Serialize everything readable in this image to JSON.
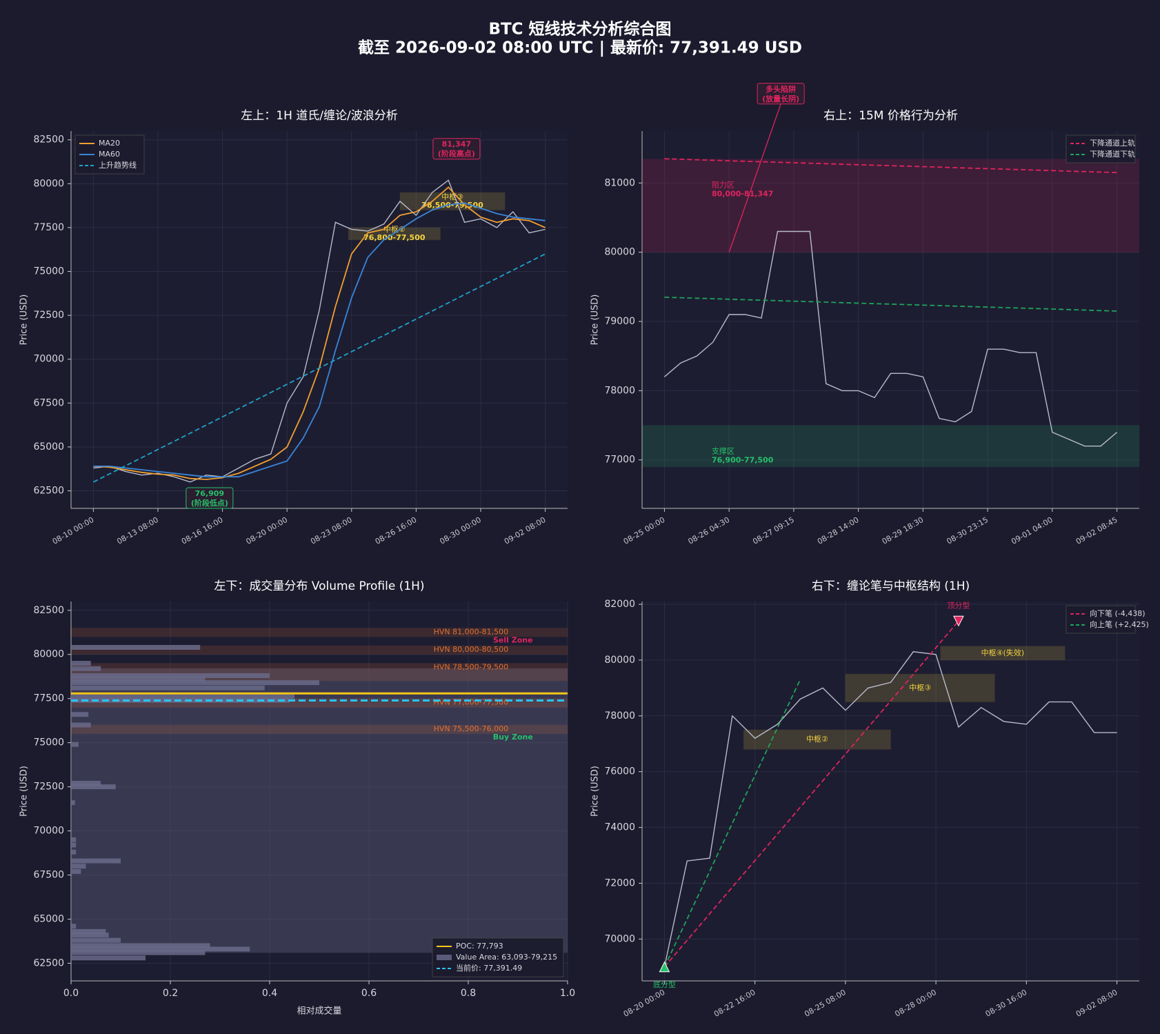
{
  "title": "BTC 短线技术分析综合图",
  "subtitle": "截至 2026-09-02 08:00 UTC | 最新价: 77,391.49 USD",
  "chart_data": [
    {
      "type": "line",
      "title": "左上：1H 道氏/缠论/波浪分析",
      "ylabel": "Price (USD)",
      "grid": true,
      "legend": "upper left",
      "categories": [
        "08-10 00:00",
        null,
        null,
        null,
        "08-13 08:00",
        null,
        null,
        null,
        "08-16 16:00",
        null,
        null,
        null,
        "08-20 00:00",
        null,
        null,
        null,
        "08-23 08:00",
        null,
        null,
        null,
        "08-26 16:00",
        null,
        null,
        null,
        "08-30 00:00",
        null,
        null,
        null,
        "09-02 08:00"
      ],
      "series": [
        {
          "color": "#b8bccb",
          "values": [
            63800,
            63900,
            63600,
            63400,
            63500,
            63300,
            63000,
            63400,
            63300,
            63800,
            64300,
            64600,
            67500,
            69000,
            72800,
            77800,
            77400,
            77300,
            77700,
            79000,
            78200,
            79500,
            80200,
            77800,
            78000,
            77500,
            78400,
            77200,
            77400
          ]
        },
        {
          "name": "MA20",
          "color": "#f0a030",
          "values": [
            63900,
            63850,
            63700,
            63550,
            63450,
            63400,
            63200,
            63150,
            63250,
            63500,
            63900,
            64300,
            65000,
            67000,
            69500,
            73000,
            76000,
            77200,
            77400,
            78200,
            78400,
            79000,
            79800,
            78800,
            78100,
            77800,
            78000,
            77900,
            77500
          ]
        },
        {
          "name": "MA60",
          "color": "#3a86d8",
          "values": [
            63900,
            63900,
            63800,
            63700,
            63600,
            63500,
            63400,
            63300,
            63300,
            63300,
            63600,
            63900,
            64200,
            65500,
            67300,
            70500,
            73500,
            75800,
            76800,
            77400,
            78000,
            78500,
            78800,
            78900,
            78600,
            78300,
            78100,
            78000,
            77900
          ]
        },
        {
          "name": "上升趋势线",
          "color": "#1fa3c9",
          "dash": true,
          "values": [
            63000,
            63464,
            63929,
            64393,
            64857,
            65321,
            65786,
            66250,
            66714,
            67179,
            67643,
            68107,
            68571,
            69036,
            69500,
            69964,
            70429,
            70893,
            71357,
            71821,
            72286,
            72750,
            73214,
            73679,
            74143,
            74607,
            75071,
            75536,
            76000
          ]
        }
      ],
      "ylim": [
        61500,
        83000
      ],
      "yticks": [
        62500,
        65000,
        67500,
        70000,
        72500,
        75000,
        77500,
        80000,
        82500
      ],
      "zones": [
        {
          "lines": [
            "中枢③",
            "78,500-79,500"
          ],
          "ymin": 78500,
          "ymax": 79500,
          "from": 19,
          "to": 25.5,
          "color": "#f5d442"
        },
        {
          "lines": [
            "中枢②",
            "76,800-77,500"
          ],
          "ymin": 76800,
          "ymax": 77500,
          "from": 15.8,
          "to": 21.5,
          "color": "#f5d442"
        }
      ],
      "annotations": [
        {
          "lines": [
            "81,347",
            "(阶段高点)"
          ],
          "index": 22.5,
          "value": 81950,
          "color": "#e0245e"
        },
        {
          "lines": [
            "76,909",
            "(阶段低点)"
          ],
          "index": 7.2,
          "value": 62050,
          "color": "#26c06a"
        }
      ]
    },
    {
      "type": "line",
      "title": "右上：15M 价格行为分析",
      "ylabel": "Price (USD)",
      "grid": true,
      "legend": "upper right",
      "categories": [
        "08-25 00:00",
        null,
        null,
        null,
        "08-26 04:30",
        null,
        null,
        null,
        "08-27 09:15",
        null,
        null,
        null,
        "08-28 14:00",
        null,
        null,
        null,
        "08-29 18:30",
        null,
        null,
        null,
        "08-30 23:15",
        null,
        null,
        null,
        "09-01 04:00",
        null,
        null,
        null,
        "09-02 08:45"
      ],
      "series": [
        {
          "color": "#b8bccb",
          "values": [
            78200,
            78400,
            78500,
            78700,
            79100,
            79100,
            79050,
            80300,
            80300,
            80300,
            78100,
            78000,
            78000,
            77900,
            78250,
            78250,
            78200,
            77600,
            77550,
            77700,
            78600,
            78600,
            78550,
            78550,
            77400,
            77300,
            77200,
            77200,
            77400
          ]
        },
        {
          "name": "下降通道上轨",
          "color": "#e0245e",
          "dash": true,
          "values": [
            81350,
            81343,
            81336,
            81329,
            81321,
            81314,
            81307,
            81300,
            81293,
            81286,
            81279,
            81271,
            81264,
            81257,
            81250,
            81243,
            81236,
            81229,
            81221,
            81214,
            81207,
            81200,
            81193,
            81186,
            81179,
            81171,
            81164,
            81157,
            81150
          ]
        },
        {
          "name": "下降通道下轨",
          "color": "#1fa35a",
          "dash": true,
          "values": [
            79350,
            79343,
            79336,
            79329,
            79321,
            79314,
            79307,
            79300,
            79293,
            79286,
            79279,
            79271,
            79264,
            79257,
            79250,
            79243,
            79236,
            79229,
            79221,
            79214,
            79207,
            79200,
            79193,
            79186,
            79179,
            79171,
            79164,
            79157,
            79150
          ]
        }
      ],
      "ylim": [
        76300,
        81750
      ],
      "yticks": [
        77000,
        78000,
        79000,
        80000,
        81000
      ],
      "zones": [
        {
          "lines": [
            "阻力区",
            "80,000-81,347"
          ],
          "ymin": 80000,
          "ymax": 81347,
          "color": "#e0245e"
        },
        {
          "lines": [
            "支撑区",
            "76,900-77,500"
          ],
          "ymin": 76900,
          "ymax": 77500,
          "color": "#26c06a"
        }
      ],
      "annotations": [
        {
          "lines": [
            "多头陷阱",
            "(放量长阴)"
          ],
          "index": 7.2,
          "value": 82280,
          "color": "#e0245e",
          "arrow": [
            4,
            80000
          ]
        }
      ]
    },
    {
      "type": "bar",
      "orientation": "horizontal",
      "title": "左下：成交量分布 Volume Profile (1H)",
      "ylabel": "Price (USD)",
      "xlabel": "相对成交量",
      "grid": true,
      "legend": "lower right",
      "color": "#6a6a8a",
      "y": [
        62800,
        63100,
        63300,
        63500,
        63800,
        64100,
        64300,
        64600,
        67700,
        68000,
        68300,
        68800,
        69200,
        69500,
        71600,
        72500,
        72700,
        74900,
        76000,
        76600,
        77400,
        77600,
        78100,
        78400,
        78600,
        78800,
        79200,
        79500,
        80400
      ],
      "values": [
        0.15,
        0.27,
        0.36,
        0.28,
        0.1,
        0.076,
        0.07,
        0.01,
        0.02,
        0.03,
        0.1,
        0.01,
        0.01,
        0.01,
        0.008,
        0.09,
        0.06,
        0.015,
        0.04,
        0.035,
        0.44,
        0.45,
        0.39,
        0.5,
        0.27,
        0.4,
        0.06,
        0.04,
        0.26
      ],
      "xlim": [
        0,
        1
      ],
      "xticks": [
        {
          "value": 0,
          "label": "0.0"
        },
        0.2,
        0.4,
        0.6,
        0.8,
        {
          "value": 1,
          "label": "1.0"
        }
      ],
      "ylim": [
        61500,
        83000
      ],
      "yticks": [
        62500,
        65000,
        67500,
        70000,
        72500,
        75000,
        77500,
        80000,
        82500
      ],
      "band": {
        "label": "Value Area: 63,093-79,215",
        "ymin": 63093,
        "ymax": 79215,
        "color": "#5a5a7a"
      },
      "lines": [
        {
          "label": "POC: 77,793",
          "value": 77793,
          "color": "#f5c518"
        },
        {
          "label": "当前价: 77,391.49",
          "value": 77391.49,
          "color": "#29c5f6",
          "dash": true
        }
      ],
      "zones": [
        {
          "lines": [
            "HVN 81,000-81,500"
          ],
          "ymin": 81000,
          "ymax": 81500,
          "color": "#e07030"
        },
        {
          "lines": [
            "HVN 80,000-80,500"
          ],
          "ymin": 80000,
          "ymax": 80500,
          "color": "#e07030"
        },
        {
          "lines": [
            "HVN 78,500-79,500"
          ],
          "ymin": 78500,
          "ymax": 79500,
          "color": "#e07030"
        },
        {
          "lines": [
            "HVN 77,000-77,500"
          ],
          "ymin": 77000,
          "ymax": 77500,
          "color": "#e07030"
        },
        {
          "lines": [
            "HVN 75,500-76,000"
          ],
          "ymin": 75500,
          "ymax": 76000,
          "color": "#e07030"
        }
      ],
      "annotations": [
        {
          "lines": [
            "Sell Zone"
          ],
          "x": 0.89,
          "value": 80800,
          "color": "#e0245e"
        },
        {
          "lines": [
            "Buy Zone"
          ],
          "x": 0.89,
          "value": 75300,
          "color": "#26c06a"
        }
      ]
    },
    {
      "type": "line",
      "title": "右下：缠论笔与中枢结构 (1H)",
      "ylabel": "Price (USD)",
      "grid": true,
      "legend": "upper right",
      "categories": [
        "08-20 00:00",
        null,
        null,
        null,
        "08-22 16:00",
        null,
        null,
        null,
        "08-25 08:00",
        null,
        null,
        null,
        "08-28 00:00",
        null,
        null,
        null,
        "08-30 16:00",
        null,
        null,
        null,
        "09-02 08:00"
      ],
      "series": [
        {
          "color": "#b8bccb",
          "values": [
            69000,
            72800,
            72900,
            78000,
            77200,
            77700,
            78600,
            79000,
            78200,
            79000,
            79200,
            80300,
            80200,
            77600,
            78300,
            77800,
            77700,
            78500,
            78500,
            77400,
            77400
          ]
        },
        {
          "name": "向下笔 (-4,438)",
          "color": "#e0245e",
          "dash": true,
          "values": [
            69000,
            69954,
            70908,
            71862,
            72815,
            73769,
            74723,
            75677,
            76631,
            77585,
            78538,
            79492,
            80446,
            81400,
            null,
            null,
            null,
            null,
            null,
            null,
            null
          ]
        },
        {
          "name": "向上笔 (+2,425)",
          "color": "#1fa35a",
          "dash": true,
          "values": [
            69000,
            70717,
            72433,
            74150,
            75867,
            77583,
            79300,
            null,
            null,
            null,
            null,
            null,
            null,
            null,
            null,
            null,
            null,
            null,
            null,
            null,
            null
          ]
        }
      ],
      "ylim": [
        68500,
        82100
      ],
      "yticks": [
        70000,
        72000,
        74000,
        76000,
        78000,
        80000,
        82000
      ],
      "zones": [
        {
          "lines": [
            "中枢②"
          ],
          "ymin": 76800,
          "ymax": 77500,
          "from": 3.5,
          "to": 10,
          "color": "#f5d442"
        },
        {
          "lines": [
            "中枢③"
          ],
          "ymin": 78500,
          "ymax": 79500,
          "from": 8,
          "to": 14.6,
          "color": "#f5d442"
        },
        {
          "lines": [
            "中枢④(失效)"
          ],
          "ymin": 80000,
          "ymax": 80500,
          "from": 12.2,
          "to": 17.7,
          "color": "#f5d442"
        }
      ],
      "markers": [
        {
          "label": "顶分型",
          "index": 13,
          "value": 81400,
          "shape": "down",
          "color": "#e0245e"
        },
        {
          "label": "底分型",
          "index": 0,
          "value": 69000,
          "shape": "up",
          "color": "#26c06a"
        }
      ]
    }
  ]
}
